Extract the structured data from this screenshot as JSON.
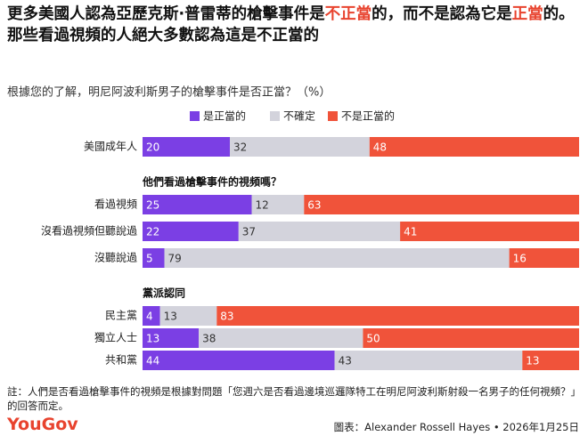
{
  "chart_data": {
    "type": "stacked_bar",
    "title_parts": [
      "更多美國人認為亞歷克斯·普雷蒂的槍擊事件是",
      "不正當",
      "的，而不是認為它是",
      "正當",
      "的。那些看過視頻的人絕大多數認為這是不正當的"
    ],
    "title_highlight_color": "#e8432e",
    "subtitle": "根據您的了解，明尼阿波利斯男子的槍擊事件是否正當？（%）",
    "group_titles": [
      null,
      "他們看過槍擊事件的視頻嗎？",
      "黨派認同"
    ],
    "category_groups": [
      0,
      1,
      1,
      1,
      2,
      2,
      2
    ],
    "categories": [
      "美國成年人",
      "看過視頻",
      "沒看過視頻但聽說過",
      "沒聽說過",
      "民主黨",
      "獨立人士",
      "共和黨"
    ],
    "series": [
      {
        "name": "是正當的",
        "color": "#7b3fe4",
        "values": [
          20,
          25,
          22,
          5,
          4,
          13,
          44
        ]
      },
      {
        "name": "不確定",
        "color": "#d3d3dc",
        "values": [
          32,
          12,
          37,
          79,
          13,
          38,
          43
        ]
      },
      {
        "name": "不是正當的",
        "color": "#f0533a",
        "values": [
          48,
          63,
          41,
          16,
          83,
          50,
          13
        ]
      }
    ],
    "note": "註：人們是否看過槍擊事件的視頻是根據對問題「您週六是否看過邊境巡邏隊特工在明尼阿波利斯射殺一名男子的任何視頻？」的回答而定。",
    "logo": "YouGov",
    "credit": "圖表：Alexander Rossell Hayes • 2026年1月25日"
  }
}
